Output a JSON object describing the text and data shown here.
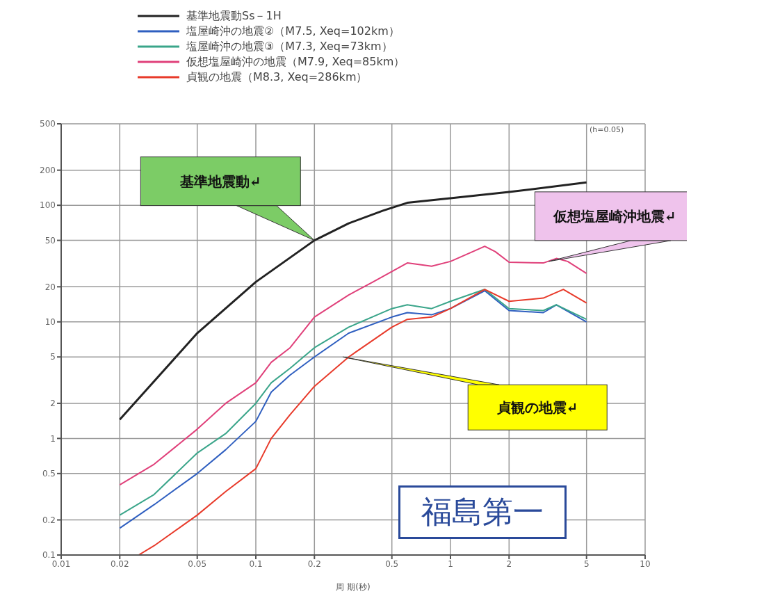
{
  "chart_data": {
    "type": "line",
    "xlabel": "周 期(秒)",
    "log": "xy",
    "grid": true,
    "legend": "top",
    "marker": "none",
    "line_style": "solid",
    "xlim": [
      0.01,
      10
    ],
    "xticks": [
      0.01,
      0.02,
      0.05,
      0.1,
      0.2,
      0.5,
      1,
      2,
      5,
      10
    ],
    "ylim": [
      0.1,
      500
    ],
    "yticks": [
      0.1,
      0.2,
      0.5,
      1,
      2,
      5,
      10,
      20,
      50,
      100,
      200,
      500
    ],
    "series": [
      {
        "name": "基準地震動Ss－1H",
        "color": "#222222",
        "x": [
          0.02,
          0.05,
          0.1,
          0.2,
          0.3,
          0.45,
          0.6,
          1,
          2,
          5
        ],
        "values": [
          1.45,
          8,
          22,
          50,
          70,
          90,
          105,
          115,
          130,
          157
        ]
      },
      {
        "name": "塩屋崎沖の地震②（M7.5, Xeq=102km）",
        "color": "#2f5fc0",
        "x": [
          0.02,
          0.03,
          0.05,
          0.07,
          0.1,
          0.12,
          0.15,
          0.2,
          0.3,
          0.5,
          0.6,
          0.8,
          1,
          1.5,
          2,
          3,
          3.5,
          5
        ],
        "values": [
          0.17,
          0.27,
          0.5,
          0.8,
          1.4,
          2.5,
          3.5,
          5,
          8,
          11,
          12,
          11.5,
          13,
          18.5,
          12.5,
          12,
          14,
          10
        ]
      },
      {
        "name": "塩屋崎沖の地震③（M7.3, Xeq=73km）",
        "color": "#3aa58a",
        "x": [
          0.02,
          0.03,
          0.05,
          0.07,
          0.1,
          0.12,
          0.15,
          0.2,
          0.3,
          0.5,
          0.6,
          0.8,
          1,
          1.5,
          2,
          3,
          3.5,
          5
        ],
        "values": [
          0.22,
          0.33,
          0.75,
          1.1,
          2,
          3,
          4,
          6,
          9,
          13,
          14,
          13,
          15,
          19,
          13,
          12.5,
          14,
          10.5
        ]
      },
      {
        "name": "仮想塩屋崎沖の地震（M7.9, Xeq=85km）",
        "color": "#e0407a",
        "x": [
          0.02,
          0.03,
          0.05,
          0.07,
          0.1,
          0.12,
          0.15,
          0.2,
          0.3,
          0.4,
          0.5,
          0.6,
          0.8,
          1,
          1.3,
          1.5,
          1.7,
          2,
          3,
          3.5,
          4,
          5
        ],
        "values": [
          0.4,
          0.6,
          1.2,
          2,
          3,
          4.5,
          6,
          11,
          17,
          22,
          27,
          32,
          30,
          33,
          40,
          44.5,
          40,
          32.5,
          32,
          35,
          33,
          26
        ]
      },
      {
        "name": "貞観の地震（M8.3, Xeq=286km）",
        "color": "#e83a2a",
        "x": [
          0.025,
          0.03,
          0.05,
          0.07,
          0.1,
          0.12,
          0.15,
          0.2,
          0.3,
          0.5,
          0.6,
          0.8,
          1,
          1.5,
          2,
          3,
          3.8,
          5
        ],
        "values": [
          0.1,
          0.12,
          0.22,
          0.35,
          0.55,
          1,
          1.6,
          2.8,
          5,
          9,
          10.5,
          11,
          13,
          19,
          15,
          16,
          19,
          14.5
        ]
      }
    ],
    "annotations": [
      {
        "text": "基準地震動↵",
        "x": 0.2,
        "y": 50
      },
      {
        "text": "仮想塩屋崎沖地震↵",
        "x": 3.2,
        "y": 33
      },
      {
        "text": "貞観の地震↵",
        "x": 0.28,
        "y": 5
      },
      "福島第一",
      "(h=0.05)"
    ]
  }
}
